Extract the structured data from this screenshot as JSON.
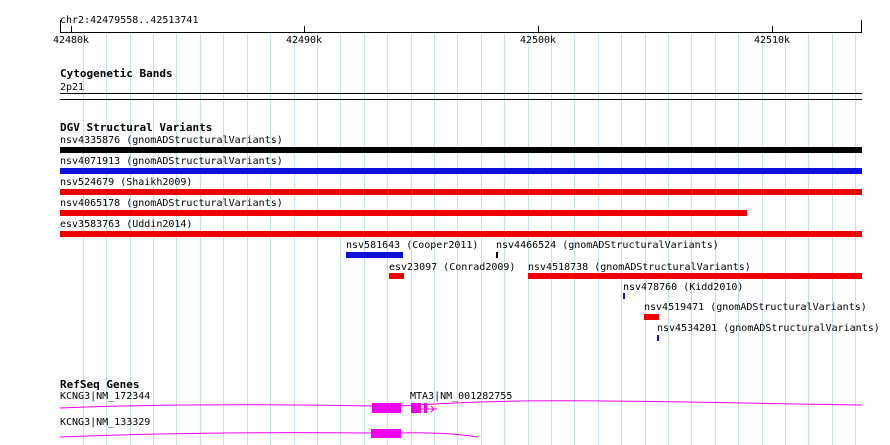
{
  "colors": {
    "grid": "#c5e0ee",
    "variant_red": "#ee0000",
    "variant_blue": "#1010dd",
    "variant_black": "#000000",
    "gene_magenta": "#ee00ee"
  },
  "ruler": {
    "region": "chr2:42479558..42513741",
    "ticks": [
      "42480k",
      "42490k",
      "42500k",
      "42510k"
    ]
  },
  "cytobands": {
    "title": "Cytogenetic Bands",
    "band": "2p21"
  },
  "dgv": {
    "title": "DGV Structural Variants",
    "variants": [
      {
        "label": "nsv4335876 (gnomADStructuralVariants)",
        "color": "black"
      },
      {
        "label": "nsv4071913 (gnomADStructuralVariants)",
        "color": "blue"
      },
      {
        "label": "nsv524679 (Shaikh2009)",
        "color": "red"
      },
      {
        "label": "nsv4065178 (gnomADStructuralVariants)",
        "color": "red"
      },
      {
        "label": "esv3583763 (Uddin2014)",
        "color": "red"
      },
      {
        "label": "nsv581643 (Cooper2011)",
        "color": "blue"
      },
      {
        "label": "nsv4466524 (gnomADStructuralVariants)",
        "color": "black"
      },
      {
        "label": "esv23097 (Conrad2009)",
        "color": "red"
      },
      {
        "label": "nsv4518738 (gnomADStructuralVariants)",
        "color": "red"
      },
      {
        "label": "nsv478760 (Kidd2010)",
        "color": "blue"
      },
      {
        "label": "nsv4519471 (gnomADStructuralVariants)",
        "color": "red"
      },
      {
        "label": "nsv4534201 (gnomADStructuralVariants)",
        "color": "blue"
      }
    ]
  },
  "refseq": {
    "title": "RefSeq Genes",
    "genes": [
      {
        "label": "KCNG3|NM_172344"
      },
      {
        "label": "MTA3|NM_001282755"
      },
      {
        "label": "KCNG3|NM_133329"
      }
    ]
  }
}
